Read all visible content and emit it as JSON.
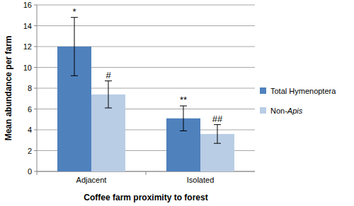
{
  "chart_data": {
    "type": "bar",
    "x_label": "Coffee farm proximity to forest",
    "y_label": "Mean abundance per farm",
    "categories": [
      "Adjacent",
      "Isolated"
    ],
    "series": [
      {
        "name": "Total Hymenoptera",
        "color": "#4f81bd",
        "values": [
          12.0,
          5.1
        ],
        "errors": [
          2.8,
          1.2
        ],
        "annotations": [
          "*",
          "**"
        ]
      },
      {
        "name": "Non-Apis",
        "color": "#b9cde5",
        "values": [
          7.4,
          3.6
        ],
        "errors": [
          1.3,
          0.9
        ],
        "annotations": [
          "#",
          "##"
        ]
      }
    ],
    "ylim": [
      0,
      16
    ],
    "yticks": [
      0,
      2,
      4,
      6,
      8,
      10,
      12,
      14,
      16
    ],
    "grid": true,
    "legend": "right"
  }
}
